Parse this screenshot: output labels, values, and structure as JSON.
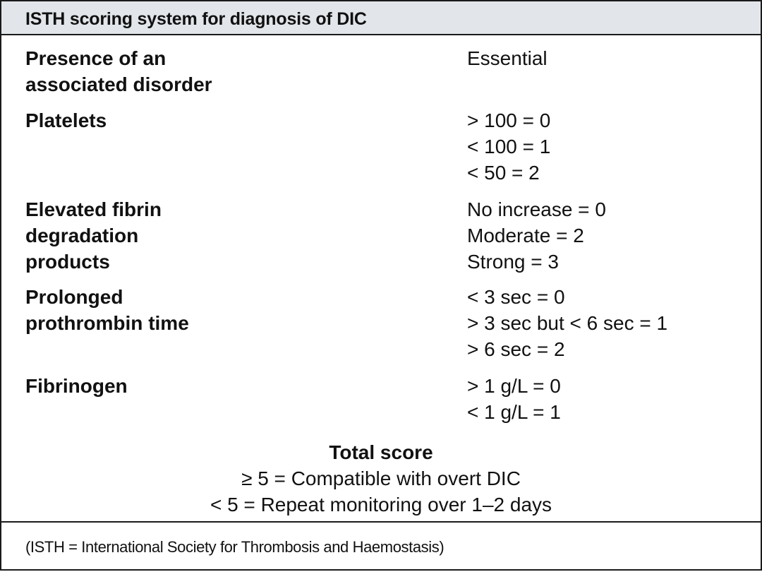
{
  "table": {
    "title": "ISTH scoring system for diagnosis of DIC",
    "rows": [
      {
        "label": "Presence of an\nassociated disorder",
        "values": [
          "Essential"
        ]
      },
      {
        "label": "Platelets",
        "values": [
          "> 100 = 0",
          "< 100 = 1",
          "< 50 = 2"
        ]
      },
      {
        "label": "Elevated fibrin\ndegradation\nproducts",
        "values": [
          "No increase = 0",
          "Moderate = 2",
          "Strong = 3"
        ]
      },
      {
        "label": "Prolonged\nprothrombin time",
        "values": [
          "< 3 sec = 0",
          "> 3 sec but < 6 sec = 1",
          "> 6 sec = 2"
        ]
      },
      {
        "label": "Fibrinogen",
        "values": [
          "> 1 g/L = 0",
          "< 1 g/L = 1"
        ]
      }
    ],
    "total": {
      "title": "Total score",
      "lines": [
        "≥ 5 = Compatible with overt DIC",
        "< 5 = Repeat monitoring over 1–2 days"
      ]
    },
    "footnote": "(ISTH = International Society for Thrombosis and Haemostasis)"
  }
}
